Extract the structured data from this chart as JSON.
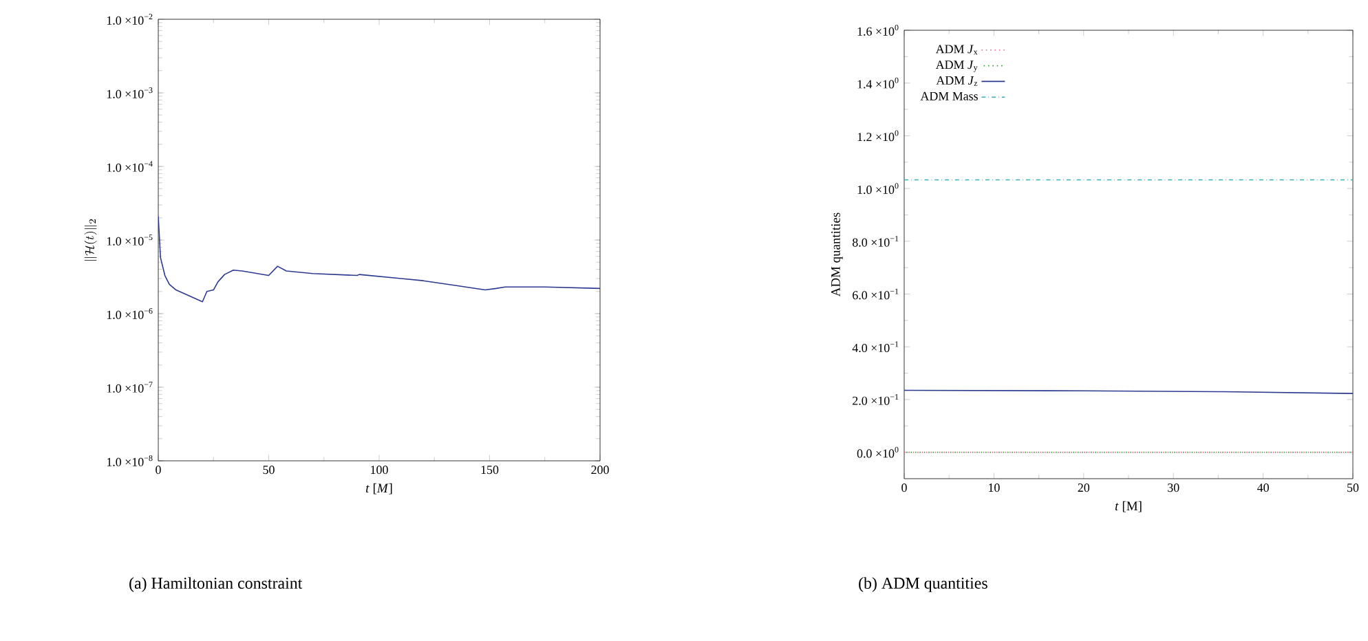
{
  "chart_data": [
    {
      "type": "line",
      "xlabel": "*t* [*M*]",
      "ylabel": "\\|\\mathcal{H}(t)\\|_2",
      "log": "y",
      "grid": false,
      "marker": "none",
      "legend": false,
      "annotations": [
        "(a) Hamiltonian constraint"
      ],
      "xlim": [
        0,
        200
      ],
      "xticks": [
        0,
        50,
        100,
        150,
        200
      ],
      "ylim": [
        1e-08,
        0.01
      ],
      "yticks": [
        {
          "value": 1e-08,
          "label": "1.0 ×10$^{−8}$"
        },
        {
          "value": 1e-07,
          "label": "1.0 ×10$^{−7}$"
        },
        {
          "value": 1e-06,
          "label": "1.0 ×10$^{−6}$"
        },
        {
          "value": 1e-05,
          "label": "1.0 ×10$^{−5}$"
        },
        {
          "value": 0.0001,
          "label": "1.0 ×10$^{−4}$"
        },
        {
          "value": 0.001,
          "label": "1.0 ×10$^{−3}$"
        },
        {
          "value": 0.01,
          "label": "1.0 ×10$^{−2}$"
        }
      ],
      "series": [
        {
          "color": "#2b3990",
          "line_style": "solid",
          "x": [
            0,
            1,
            3,
            5,
            8,
            20,
            22,
            25,
            27,
            30,
            34,
            38,
            50,
            54,
            58,
            70,
            90,
            91,
            110,
            120,
            135,
            148,
            153,
            157,
            175,
            200
          ],
          "values": [
            2.1e-05,
            5.8e-06,
            3.3e-06,
            2.5e-06,
            2.1e-06,
            1.45e-06,
            2e-06,
            2.1e-06,
            2.7e-06,
            3.4e-06,
            3.9e-06,
            3.8e-06,
            3.3e-06,
            4.4e-06,
            3.8e-06,
            3.5e-06,
            3.3e-06,
            3.4e-06,
            3e-06,
            2.8e-06,
            2.4e-06,
            2.1e-06,
            2.2e-06,
            2.3e-06,
            2.3e-06,
            2.2e-06
          ]
        }
      ]
    },
    {
      "type": "line",
      "xlabel": "*t* [M]",
      "ylabel": "ADM quantities",
      "grid": false,
      "marker": "none",
      "legend": "top left",
      "annotations": [
        "(b) ADM quantities"
      ],
      "xlim": [
        0,
        50
      ],
      "xticks": [
        0,
        10,
        20,
        30,
        40,
        50
      ],
      "ylim": [
        -0.1,
        1.6
      ],
      "yticks": [
        {
          "value": 0,
          "label": "0.0 ×10$^{0}$"
        },
        {
          "value": 0.2,
          "label": "2.0 ×10$^{−1}$"
        },
        {
          "value": 0.4,
          "label": "4.0 ×10$^{−1}$"
        },
        {
          "value": 0.6,
          "label": "6.0 ×10$^{−1}$"
        },
        {
          "value": 0.8,
          "label": "8.0 ×10$^{−1}$"
        },
        {
          "value": 1.0,
          "label": "1.0 ×10$^{0}$"
        },
        {
          "value": 1.2,
          "label": "1.2 ×10$^{0}$"
        },
        {
          "value": 1.4,
          "label": "1.4 ×10$^{0}$"
        },
        {
          "value": 1.6,
          "label": "1.6 ×10$^{0}$"
        }
      ],
      "series": [
        {
          "name": "ADM *J*$_{x}$",
          "color": "#e8608c",
          "line_style": "dotted",
          "x": [
            0,
            50
          ],
          "values": [
            0,
            0
          ]
        },
        {
          "name": "ADM *J*$_{y}$",
          "color": "#2ca02c",
          "line_style": "dotted",
          "x": [
            0,
            50
          ],
          "values": [
            0,
            0
          ]
        },
        {
          "name": "ADM *J*$_{z}$",
          "color": "#2b3990",
          "line_style": "solid",
          "x": [
            0,
            20,
            35,
            50
          ],
          "values": [
            0.235,
            0.233,
            0.23,
            0.223
          ]
        },
        {
          "name": "ADM Mass",
          "color": "#3cb0b0",
          "line_style": "dashdot",
          "x": [
            0,
            50
          ],
          "values": [
            1.033,
            1.033
          ]
        }
      ]
    }
  ]
}
